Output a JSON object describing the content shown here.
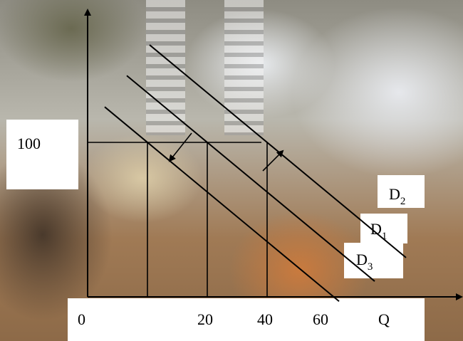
{
  "chart_data": {
    "type": "line",
    "xlabel": "Q",
    "ylabel": "",
    "x_ticks": [
      "0",
      "20",
      "40",
      "60"
    ],
    "y_ticks": [
      "100"
    ],
    "price_level": 100,
    "series": [
      {
        "name": "D2",
        "base": "D",
        "subscript": "2",
        "quantity_at_price_100": 60
      },
      {
        "name": "D1",
        "base": "D",
        "subscript": "1",
        "quantity_at_price_100": 40
      },
      {
        "name": "D3",
        "base": "D",
        "subscript": "3",
        "quantity_at_price_100": 20
      }
    ],
    "annotations": [
      {
        "type": "arrow",
        "from": "D1",
        "to": "D2"
      },
      {
        "type": "arrow",
        "from": "D1",
        "to": "D3"
      }
    ],
    "grid": false,
    "legend": "none"
  }
}
